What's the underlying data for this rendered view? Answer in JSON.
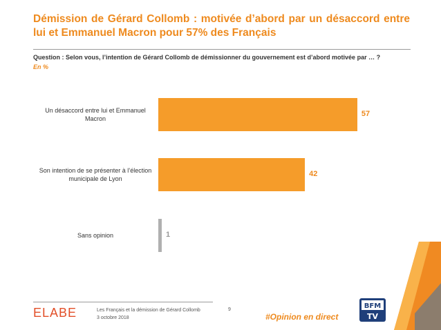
{
  "slide": {
    "title": "Démission de Gérard Collomb : motivée d’abord par un désaccord entre lui et Emmanuel Macron pour 57% des Français",
    "question": "Question : Selon vous, l’intention de Gérard Collomb de démissionner du gouvernement est d’abord motivée par … ?",
    "unit": "En %"
  },
  "chart_data": {
    "type": "bar",
    "orientation": "horizontal",
    "categories": [
      "Un désaccord entre lui et Emmanuel Macron",
      "Son intention de se présenter à l’élection municipale de Lyon",
      "Sans opinion"
    ],
    "values": [
      57,
      42,
      1
    ],
    "value_labels": [
      "57",
      "42",
      "1"
    ],
    "colors": [
      "#f59c2a",
      "#f59c2a",
      "#b0b0b0"
    ],
    "xlim": [
      0,
      100
    ],
    "grid": false,
    "legend": "none"
  },
  "footer": {
    "logo": "ELABE",
    "line1": "Les Français et la démission de Gérard Collomb",
    "line2": "3 octobre 2018",
    "page_number": "9",
    "hashtag": "#Opinion en direct",
    "partner_logo": "BFM TV"
  },
  "colors": {
    "accent": "#ee8a1e",
    "bar": "#f59c2a",
    "bar_neutral": "#b0b0b0",
    "logo_red": "#e24f28"
  }
}
